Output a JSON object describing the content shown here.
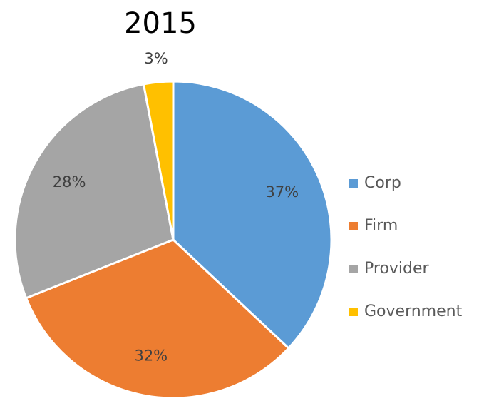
{
  "chart_data": {
    "type": "pie",
    "title": "2015",
    "categories": [
      "Corp",
      "Firm",
      "Provider",
      "Government"
    ],
    "values": [
      37,
      32,
      28,
      3
    ],
    "value_labels": [
      "37%",
      "32%",
      "28%",
      "3%"
    ],
    "colors": [
      "#5b9bd5",
      "#ed7d31",
      "#a5a5a5",
      "#ffc000"
    ],
    "legend": "right"
  }
}
